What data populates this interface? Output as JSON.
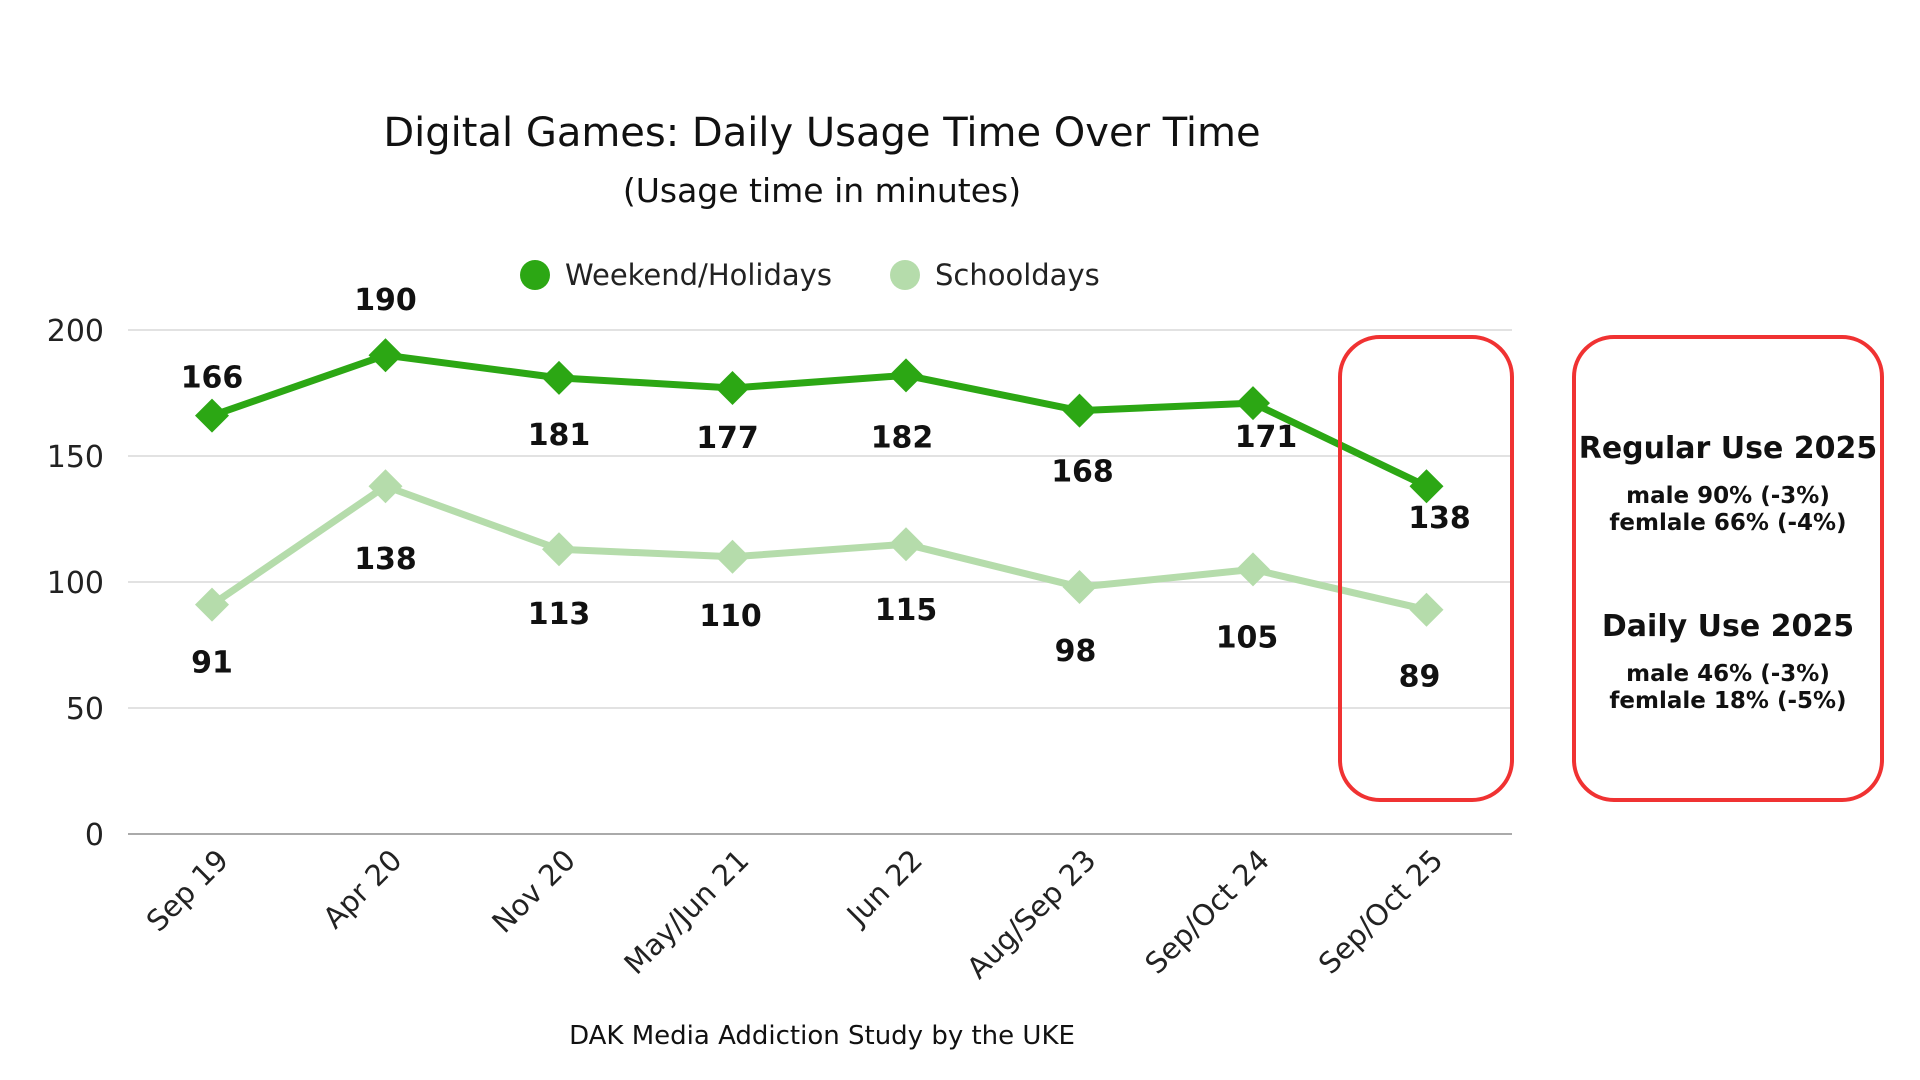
{
  "chart_data": {
    "type": "line",
    "title": "Digital Games: Daily Usage Time Over Time",
    "subtitle": "(Usage time in minutes)",
    "categories": [
      "Sep 19",
      "Apr 20",
      "Nov 20",
      "May/Jun 21",
      "Jun 22",
      "Aug/Sep 23",
      "Sep/Oct 24",
      "Sep/Oct 25"
    ],
    "series": [
      {
        "name": "Weekend/Holidays",
        "color": "#2ca714",
        "values": [
          166,
          190,
          181,
          177,
          182,
          168,
          171,
          138
        ]
      },
      {
        "name": "Schooldays",
        "color": "#b5dcab",
        "values": [
          91,
          138,
          113,
          110,
          115,
          98,
          105,
          89
        ]
      }
    ],
    "ylim": [
      0,
      200
    ],
    "yticks": [
      0,
      50,
      100,
      150,
      200
    ],
    "grid": true,
    "legend": "top-center",
    "source": "DAK Media Addiction Study by the UKE",
    "highlight_color": "#f03232",
    "notes": [
      {
        "title": "Regular Use 2025",
        "lines": [
          "male 90% (-3%)",
          "femlale 66% (-4%)"
        ]
      },
      {
        "title": "Daily Use 2025",
        "lines": [
          "male 46% (-3%)",
          "femlale 18% (-5%)"
        ]
      }
    ]
  }
}
